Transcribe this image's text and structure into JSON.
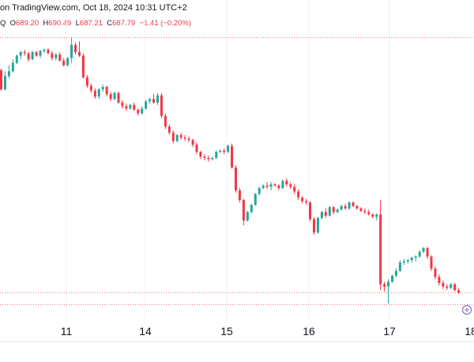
{
  "header": {
    "text": "on TradingView.com, Oct 18, 2024 10:31 UTC+2"
  },
  "ohlc": {
    "symbol_tail": "Q",
    "o_label": "O",
    "o": "689.20",
    "h_label": "H",
    "h": "690.49",
    "l_label": "L",
    "l": "687.21",
    "c_label": "C",
    "c": "687.79",
    "change": "−1.41 (−0.20%)"
  },
  "colors": {
    "up": "#26a69a",
    "down": "#f23645",
    "grid": "#f0f3fa",
    "dotted": "#e57373",
    "text": "#131722"
  },
  "chart_data": {
    "type": "candlestick",
    "x_tick_labels": [
      "11",
      "14",
      "15",
      "16",
      "17",
      "18"
    ],
    "y_range": [
      680.5,
      703.5
    ],
    "reference_lines": [
      703,
      681.8,
      680.8
    ],
    "candles": [
      [
        700.3,
        700.4,
        698.6,
        698.7
      ],
      [
        698.7,
        700.2,
        698.6,
        699.8
      ],
      [
        699.8,
        700.7,
        699.6,
        700.2
      ],
      [
        700.2,
        701.2,
        700.1,
        700.9
      ],
      [
        700.9,
        701.6,
        700.8,
        701.5
      ],
      [
        701.5,
        701.9,
        701.2,
        701.8
      ],
      [
        701.8,
        702.0,
        701.5,
        701.7
      ],
      [
        701.7,
        701.8,
        701.0,
        701.2
      ],
      [
        701.2,
        701.9,
        701.1,
        701.8
      ],
      [
        701.8,
        701.9,
        701.4,
        701.5
      ],
      [
        701.5,
        702.0,
        701.3,
        701.9
      ],
      [
        701.9,
        702.1,
        701.7,
        702.0
      ],
      [
        702.0,
        702.1,
        701.6,
        701.7
      ],
      [
        701.7,
        701.9,
        701.1,
        701.3
      ],
      [
        701.3,
        701.7,
        701.1,
        701.6
      ],
      [
        701.6,
        701.8,
        701.0,
        701.1
      ],
      [
        701.1,
        701.3,
        700.6,
        700.7
      ],
      [
        700.7,
        701.4,
        700.6,
        701.3
      ],
      [
        701.3,
        703.0,
        700.9,
        702.4
      ],
      [
        702.4,
        702.6,
        701.6,
        701.8
      ],
      [
        701.8,
        702.7,
        701.4,
        701.5
      ],
      [
        701.5,
        701.7,
        699.6,
        699.7
      ],
      [
        699.7,
        699.9,
        698.8,
        699.0
      ],
      [
        699.0,
        699.2,
        698.4,
        698.6
      ],
      [
        698.6,
        698.8,
        697.9,
        698.1
      ],
      [
        698.1,
        698.8,
        697.9,
        698.7
      ],
      [
        698.7,
        699.1,
        698.5,
        698.9
      ],
      [
        698.9,
        699.0,
        698.1,
        698.3
      ],
      [
        698.3,
        698.5,
        697.7,
        697.9
      ],
      [
        697.9,
        698.5,
        697.8,
        698.4
      ],
      [
        698.4,
        698.5,
        697.5,
        697.6
      ],
      [
        697.6,
        697.8,
        697.1,
        697.3
      ],
      [
        697.3,
        697.5,
        696.9,
        697.1
      ],
      [
        697.1,
        697.5,
        697.0,
        697.4
      ],
      [
        697.4,
        697.6,
        696.9,
        697.0
      ],
      [
        697.0,
        697.1,
        696.5,
        696.7
      ],
      [
        696.7,
        697.3,
        696.6,
        697.1
      ],
      [
        697.1,
        697.8,
        697.0,
        697.7
      ],
      [
        697.7,
        698.0,
        697.5,
        697.9
      ],
      [
        697.9,
        698.3,
        697.5,
        697.6
      ],
      [
        697.6,
        698.4,
        697.4,
        698.2
      ],
      [
        698.2,
        698.4,
        696.3,
        696.5
      ],
      [
        696.5,
        696.7,
        695.4,
        695.6
      ],
      [
        695.6,
        695.8,
        694.9,
        695.1
      ],
      [
        695.1,
        695.3,
        694.2,
        694.4
      ],
      [
        694.4,
        695.0,
        694.3,
        694.9
      ],
      [
        694.9,
        695.1,
        694.5,
        694.7
      ],
      [
        694.7,
        694.9,
        694.4,
        694.6
      ],
      [
        694.6,
        694.8,
        694.3,
        694.5
      ],
      [
        694.5,
        694.6,
        693.9,
        694.1
      ],
      [
        694.1,
        694.3,
        693.3,
        693.5
      ],
      [
        693.5,
        693.6,
        692.9,
        693.1
      ],
      [
        693.1,
        693.3,
        692.8,
        693.0
      ],
      [
        693.0,
        693.2,
        692.7,
        692.9
      ],
      [
        692.9,
        693.1,
        692.8,
        693.0
      ],
      [
        693.0,
        693.6,
        692.9,
        693.5
      ],
      [
        693.5,
        693.7,
        693.4,
        693.6
      ],
      [
        693.6,
        693.8,
        693.3,
        693.5
      ],
      [
        693.5,
        694.1,
        693.4,
        694.0
      ],
      [
        694.0,
        694.2,
        692.1,
        692.2
      ],
      [
        692.2,
        692.4,
        690.1,
        690.3
      ],
      [
        690.3,
        690.5,
        689.3,
        689.5
      ],
      [
        689.5,
        689.6,
        687.4,
        687.8
      ],
      [
        687.8,
        688.6,
        687.7,
        688.5
      ],
      [
        688.5,
        689.2,
        688.4,
        689.1
      ],
      [
        689.1,
        690.1,
        689.0,
        690.0
      ],
      [
        690.0,
        690.6,
        689.9,
        690.5
      ],
      [
        690.5,
        690.8,
        690.4,
        690.7
      ],
      [
        690.7,
        691.0,
        690.4,
        690.6
      ],
      [
        690.6,
        691.0,
        690.3,
        690.8
      ],
      [
        690.8,
        690.9,
        690.6,
        690.7
      ],
      [
        690.7,
        690.8,
        690.3,
        690.5
      ],
      [
        690.5,
        691.2,
        690.4,
        691.1
      ],
      [
        691.1,
        691.3,
        690.6,
        690.8
      ],
      [
        690.8,
        691.0,
        690.4,
        690.6
      ],
      [
        690.6,
        690.8,
        690.0,
        690.2
      ],
      [
        690.2,
        690.4,
        689.5,
        689.7
      ],
      [
        689.7,
        689.8,
        689.2,
        689.4
      ],
      [
        689.4,
        689.6,
        689.1,
        689.3
      ],
      [
        689.3,
        689.4,
        687.7,
        687.9
      ],
      [
        687.9,
        688.1,
        686.6,
        686.8
      ],
      [
        686.8,
        688.1,
        686.7,
        688.0
      ],
      [
        688.0,
        688.6,
        687.9,
        688.5
      ],
      [
        688.5,
        688.8,
        688.0,
        688.2
      ],
      [
        688.2,
        689.0,
        688.1,
        688.9
      ],
      [
        688.9,
        689.0,
        688.3,
        688.5
      ],
      [
        688.5,
        688.8,
        688.4,
        688.7
      ],
      [
        688.7,
        689.1,
        688.6,
        689.0
      ],
      [
        689.0,
        689.2,
        688.7,
        688.8
      ],
      [
        688.8,
        689.4,
        688.7,
        689.3
      ],
      [
        689.3,
        689.4,
        688.9,
        689.0
      ],
      [
        689.0,
        689.1,
        688.7,
        688.8
      ],
      [
        688.8,
        688.9,
        688.5,
        688.6
      ],
      [
        688.6,
        688.8,
        688.3,
        688.5
      ],
      [
        688.5,
        688.7,
        688.2,
        688.3
      ],
      [
        688.3,
        688.4,
        688.0,
        688.1
      ],
      [
        688.1,
        688.4,
        687.8,
        688.3
      ],
      [
        688.3,
        689.5,
        682.0,
        682.5
      ],
      [
        682.5,
        682.7,
        681.9,
        682.3
      ],
      [
        682.3,
        682.9,
        680.9,
        682.7
      ],
      [
        682.7,
        683.3,
        682.6,
        683.2
      ],
      [
        683.2,
        683.8,
        683.1,
        683.6
      ],
      [
        683.6,
        684.5,
        683.5,
        684.3
      ],
      [
        684.3,
        684.6,
        684.1,
        684.4
      ],
      [
        684.4,
        684.6,
        684.2,
        684.5
      ],
      [
        684.5,
        684.8,
        684.3,
        684.7
      ],
      [
        684.7,
        684.9,
        684.4,
        684.8
      ],
      [
        684.8,
        685.3,
        684.7,
        685.2
      ],
      [
        685.2,
        685.6,
        685.1,
        685.5
      ],
      [
        685.5,
        685.6,
        684.6,
        684.8
      ],
      [
        684.8,
        684.9,
        683.6,
        683.8
      ],
      [
        683.8,
        684.0,
        682.9,
        683.1
      ],
      [
        683.1,
        683.3,
        682.4,
        682.6
      ],
      [
        682.6,
        682.8,
        682.1,
        682.3
      ],
      [
        682.3,
        682.5,
        682.0,
        682.2
      ],
      [
        682.2,
        682.6,
        682.1,
        682.5
      ],
      [
        682.5,
        682.6,
        681.9,
        682.0
      ],
      [
        682.0,
        682.2,
        681.7,
        681.8
      ]
    ]
  }
}
